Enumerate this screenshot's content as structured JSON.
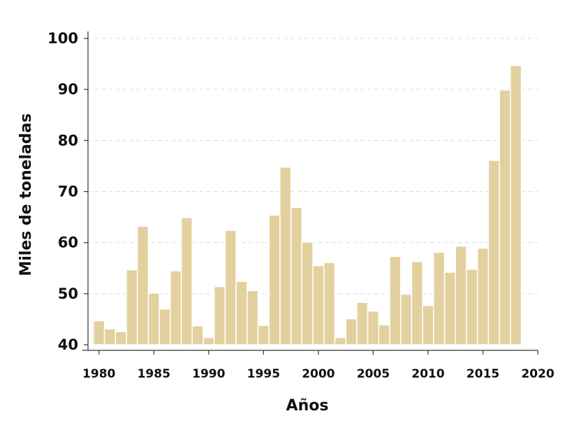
{
  "chart_data": {
    "type": "bar",
    "title": "",
    "xlabel": "Años",
    "ylabel": "Miles de toneladas",
    "x": [
      1980,
      1981,
      1982,
      1983,
      1984,
      1985,
      1986,
      1987,
      1988,
      1989,
      1990,
      1991,
      1992,
      1993,
      1994,
      1995,
      1996,
      1997,
      1998,
      1999,
      2000,
      2001,
      2002,
      2003,
      2004,
      2005,
      2006,
      2007,
      2008,
      2009,
      2010,
      2011,
      2012,
      2013,
      2014,
      2015,
      2016,
      2017,
      2018
    ],
    "values": [
      44.7,
      43.1,
      42.6,
      54.7,
      63.2,
      50.1,
      47.0,
      54.5,
      64.9,
      43.7,
      41.4,
      51.4,
      62.4,
      52.4,
      50.6,
      43.8,
      65.4,
      74.8,
      66.9,
      60.1,
      55.5,
      56.1,
      41.4,
      45.1,
      48.3,
      46.6,
      43.9,
      57.3,
      49.9,
      56.3,
      47.7,
      58.1,
      54.2,
      59.3,
      54.8,
      58.9,
      76.1,
      89.9,
      94.7
    ],
    "xlim": [
      1979,
      2020
    ],
    "ylim": [
      40,
      100
    ],
    "x_ticks": [
      "1980",
      "1985",
      "1990",
      "1995",
      "2000",
      "2005",
      "2010",
      "2015",
      "2020"
    ],
    "y_ticks": [
      "40",
      "50",
      "60",
      "70",
      "80",
      "90",
      "100"
    ],
    "grid": true,
    "bar_color": "#e3d09f",
    "bar_edge_color": "#ffffff"
  }
}
